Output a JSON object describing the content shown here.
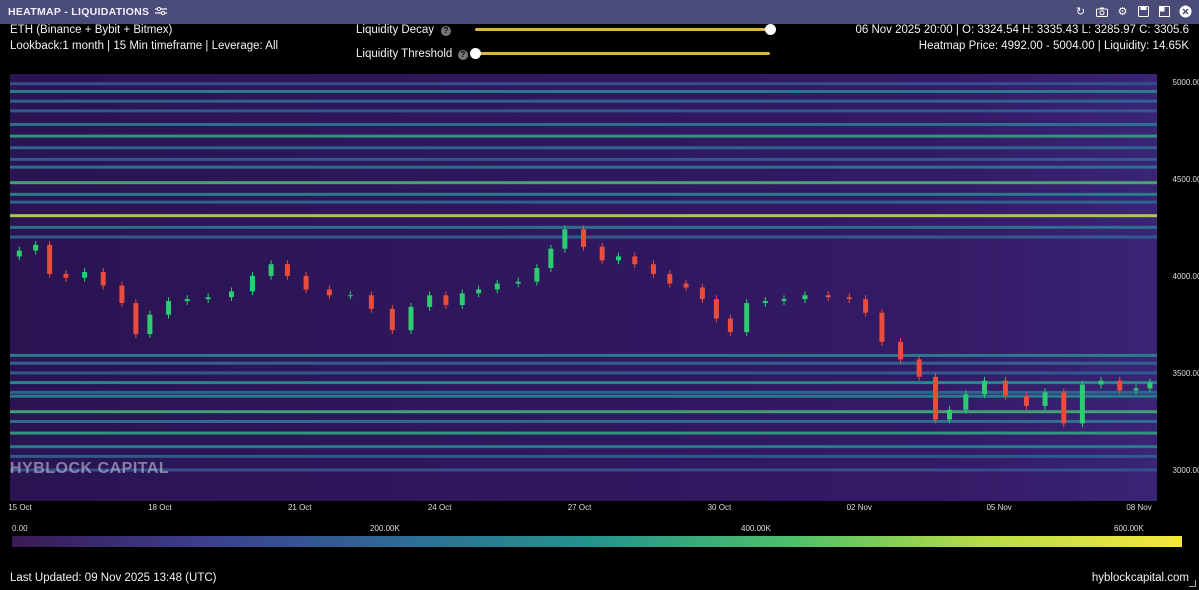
{
  "window": {
    "title": "HEATMAP - LIQUIDATIONS",
    "icons": [
      "filter-icon",
      "refresh-icon",
      "camera-icon",
      "settings-icon",
      "save-icon",
      "expand-icon",
      "close-icon"
    ]
  },
  "header": {
    "symbol": "ETH (Binance + Bybit + Bitmex)",
    "lookback": "Lookback:1 month | 15 Min timeframe | Leverage: All",
    "ohlc": "06 Nov 2025 20:00 | O: 3324.54 H: 3335.43 L: 3285.97 C: 3305.6",
    "heatmap_price": "Heatmap Price: 4992.00 - 5004.00 | Liquidity: 14.65K"
  },
  "controls": {
    "decay_label": "Liquidity Decay",
    "threshold_label": "Liquidity Threshold",
    "decay_value": 1.0,
    "threshold_value": 0.0
  },
  "watermark": "HYBLOCK CAPITAL",
  "colorbar": {
    "ticks": [
      "0.00",
      "200.00K",
      "400.00K",
      "600.00K"
    ]
  },
  "footer": {
    "updated": "Last Updated: 09 Nov 2025 13:48 (UTC)",
    "site": "hyblockcapital.com"
  },
  "colors": {
    "titlebar": "#4a4b78",
    "accent": "#d9b44a",
    "up": "#2ecc71",
    "down": "#e74c3c",
    "heat_low": "#3a1a55",
    "heat_high": "#f6e83d"
  },
  "chart_data": {
    "type": "heatmap",
    "x_tick_labels": [
      "15 Oct",
      "18 Oct",
      "21 Oct",
      "24 Oct",
      "27 Oct",
      "30 Oct",
      "02 Nov",
      "05 Nov",
      "08 Nov"
    ],
    "y_tick_labels": [
      "5000.00",
      "4500.00",
      "4000.00",
      "3500.00",
      "3000.00"
    ],
    "y_ticks": [
      5000,
      4500,
      4000,
      3500,
      3000
    ],
    "ylim": [
      2840,
      5040
    ],
    "x_range_days": [
      15,
      39.6
    ],
    "price_series": {
      "type": "candlestick",
      "points": [
        [
          15.0,
          4100
        ],
        [
          15.4,
          4130
        ],
        [
          15.7,
          4160
        ],
        [
          16.0,
          4010
        ],
        [
          16.4,
          3990
        ],
        [
          16.8,
          4020
        ],
        [
          17.2,
          3950
        ],
        [
          17.6,
          3860
        ],
        [
          17.8,
          3700
        ],
        [
          18.2,
          3800
        ],
        [
          18.6,
          3870
        ],
        [
          19.0,
          3880
        ],
        [
          19.5,
          3890
        ],
        [
          20.0,
          3920
        ],
        [
          20.4,
          4000
        ],
        [
          20.8,
          4060
        ],
        [
          21.1,
          4000
        ],
        [
          21.6,
          3930
        ],
        [
          22.1,
          3900
        ],
        [
          22.5,
          3900
        ],
        [
          23.0,
          3830
        ],
        [
          23.4,
          3720
        ],
        [
          23.8,
          3840
        ],
        [
          24.2,
          3900
        ],
        [
          24.5,
          3850
        ],
        [
          24.9,
          3910
        ],
        [
          25.2,
          3930
        ],
        [
          25.7,
          3960
        ],
        [
          26.1,
          3970
        ],
        [
          26.5,
          4040
        ],
        [
          26.7,
          4140
        ],
        [
          27.1,
          4240
        ],
        [
          27.5,
          4150
        ],
        [
          27.9,
          4080
        ],
        [
          28.2,
          4100
        ],
        [
          28.6,
          4060
        ],
        [
          29.0,
          4010
        ],
        [
          29.3,
          3960
        ],
        [
          29.7,
          3940
        ],
        [
          30.0,
          3880
        ],
        [
          30.3,
          3780
        ],
        [
          30.6,
          3710
        ],
        [
          31.0,
          3860
        ],
        [
          31.4,
          3870
        ],
        [
          31.8,
          3880
        ],
        [
          32.3,
          3900
        ],
        [
          32.8,
          3890
        ],
        [
          33.2,
          3880
        ],
        [
          33.5,
          3810
        ],
        [
          33.9,
          3660
        ],
        [
          34.3,
          3570
        ],
        [
          34.7,
          3480
        ],
        [
          35.0,
          3260
        ],
        [
          35.3,
          3310
        ],
        [
          35.7,
          3390
        ],
        [
          36.1,
          3460
        ],
        [
          36.6,
          3380
        ],
        [
          37.0,
          3330
        ],
        [
          37.4,
          3400
        ],
        [
          37.8,
          3240
        ],
        [
          38.2,
          3440
        ],
        [
          38.6,
          3460
        ],
        [
          39.0,
          3410
        ],
        [
          39.3,
          3420
        ],
        [
          39.6,
          3450
        ]
      ]
    },
    "liquidity_levels": [
      {
        "price": 4990,
        "intensity": 0.35
      },
      {
        "price": 4950,
        "intensity": 0.55
      },
      {
        "price": 4900,
        "intensity": 0.45
      },
      {
        "price": 4850,
        "intensity": 0.4
      },
      {
        "price": 4780,
        "intensity": 0.5
      },
      {
        "price": 4720,
        "intensity": 0.65
      },
      {
        "price": 4660,
        "intensity": 0.45
      },
      {
        "price": 4600,
        "intensity": 0.4
      },
      {
        "price": 4560,
        "intensity": 0.5
      },
      {
        "price": 4480,
        "intensity": 0.72
      },
      {
        "price": 4420,
        "intensity": 0.55
      },
      {
        "price": 4380,
        "intensity": 0.45
      },
      {
        "price": 4310,
        "intensity": 0.9
      },
      {
        "price": 4250,
        "intensity": 0.5
      },
      {
        "price": 4200,
        "intensity": 0.4
      },
      {
        "price": 3590,
        "intensity": 0.55
      },
      {
        "price": 3550,
        "intensity": 0.45
      },
      {
        "price": 3500,
        "intensity": 0.4
      },
      {
        "price": 3450,
        "intensity": 0.6
      },
      {
        "price": 3400,
        "intensity": 0.45
      },
      {
        "price": 3380,
        "intensity": 0.55
      },
      {
        "price": 3300,
        "intensity": 0.7
      },
      {
        "price": 3250,
        "intensity": 0.5
      },
      {
        "price": 3190,
        "intensity": 0.65
      },
      {
        "price": 3120,
        "intensity": 0.55
      },
      {
        "price": 3070,
        "intensity": 0.4
      },
      {
        "price": 3000,
        "intensity": 0.35
      }
    ]
  }
}
